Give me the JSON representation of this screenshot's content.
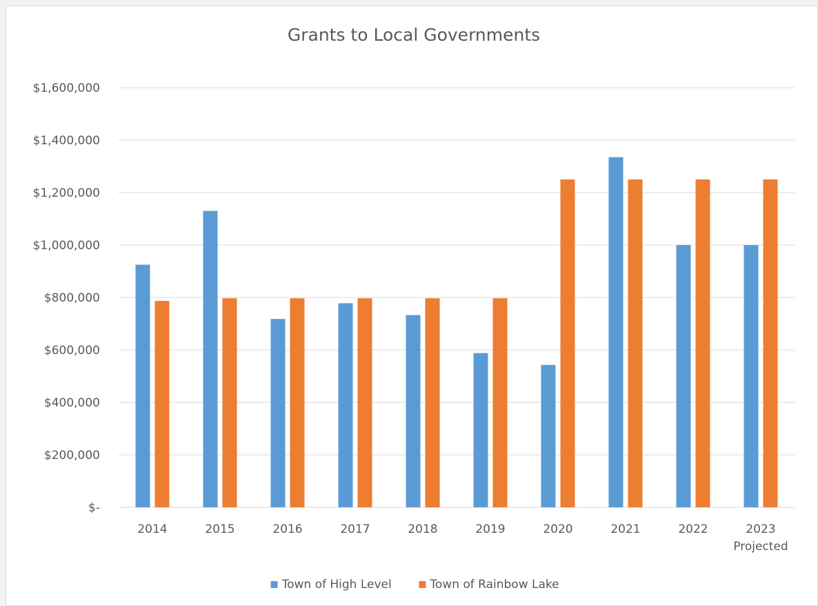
{
  "chart_data": {
    "type": "bar",
    "title": "Grants to Local Governments",
    "xlabel": "",
    "ylabel": "",
    "categories": [
      [
        "2014"
      ],
      [
        "2015"
      ],
      [
        "2016"
      ],
      [
        "2017"
      ],
      [
        "2018"
      ],
      [
        "2019"
      ],
      [
        "2020"
      ],
      [
        "2021"
      ],
      [
        "2022"
      ],
      [
        "2023",
        "Projected"
      ]
    ],
    "series": [
      {
        "name": "Town of High Level",
        "color": "#5b9bd5",
        "values": [
          925000,
          1130000,
          718000,
          778000,
          733000,
          588000,
          543000,
          1335000,
          1000000,
          1000000
        ]
      },
      {
        "name": "Town of Rainbow Lake",
        "color": "#ed7d31",
        "values": [
          787000,
          797000,
          797000,
          797000,
          797000,
          797000,
          1250000,
          1250000,
          1250000,
          1250000
        ]
      }
    ],
    "ylim": [
      0,
      1600000
    ],
    "yticks": [
      {
        "value": 0,
        "label": "$-"
      },
      {
        "value": 200000,
        "label": "$200,000"
      },
      {
        "value": 400000,
        "label": "$400,000"
      },
      {
        "value": 600000,
        "label": "$600,000"
      },
      {
        "value": 800000,
        "label": "$800,000"
      },
      {
        "value": 1000000,
        "label": "$1,000,000"
      },
      {
        "value": 1200000,
        "label": "$1,200,000"
      },
      {
        "value": 1400000,
        "label": "$1,400,000"
      },
      {
        "value": 1600000,
        "label": "$1,600,000"
      }
    ],
    "grid": true,
    "legend": "bottom",
    "colors": {
      "grid": "#d9d9d9",
      "text": "#595959"
    }
  }
}
